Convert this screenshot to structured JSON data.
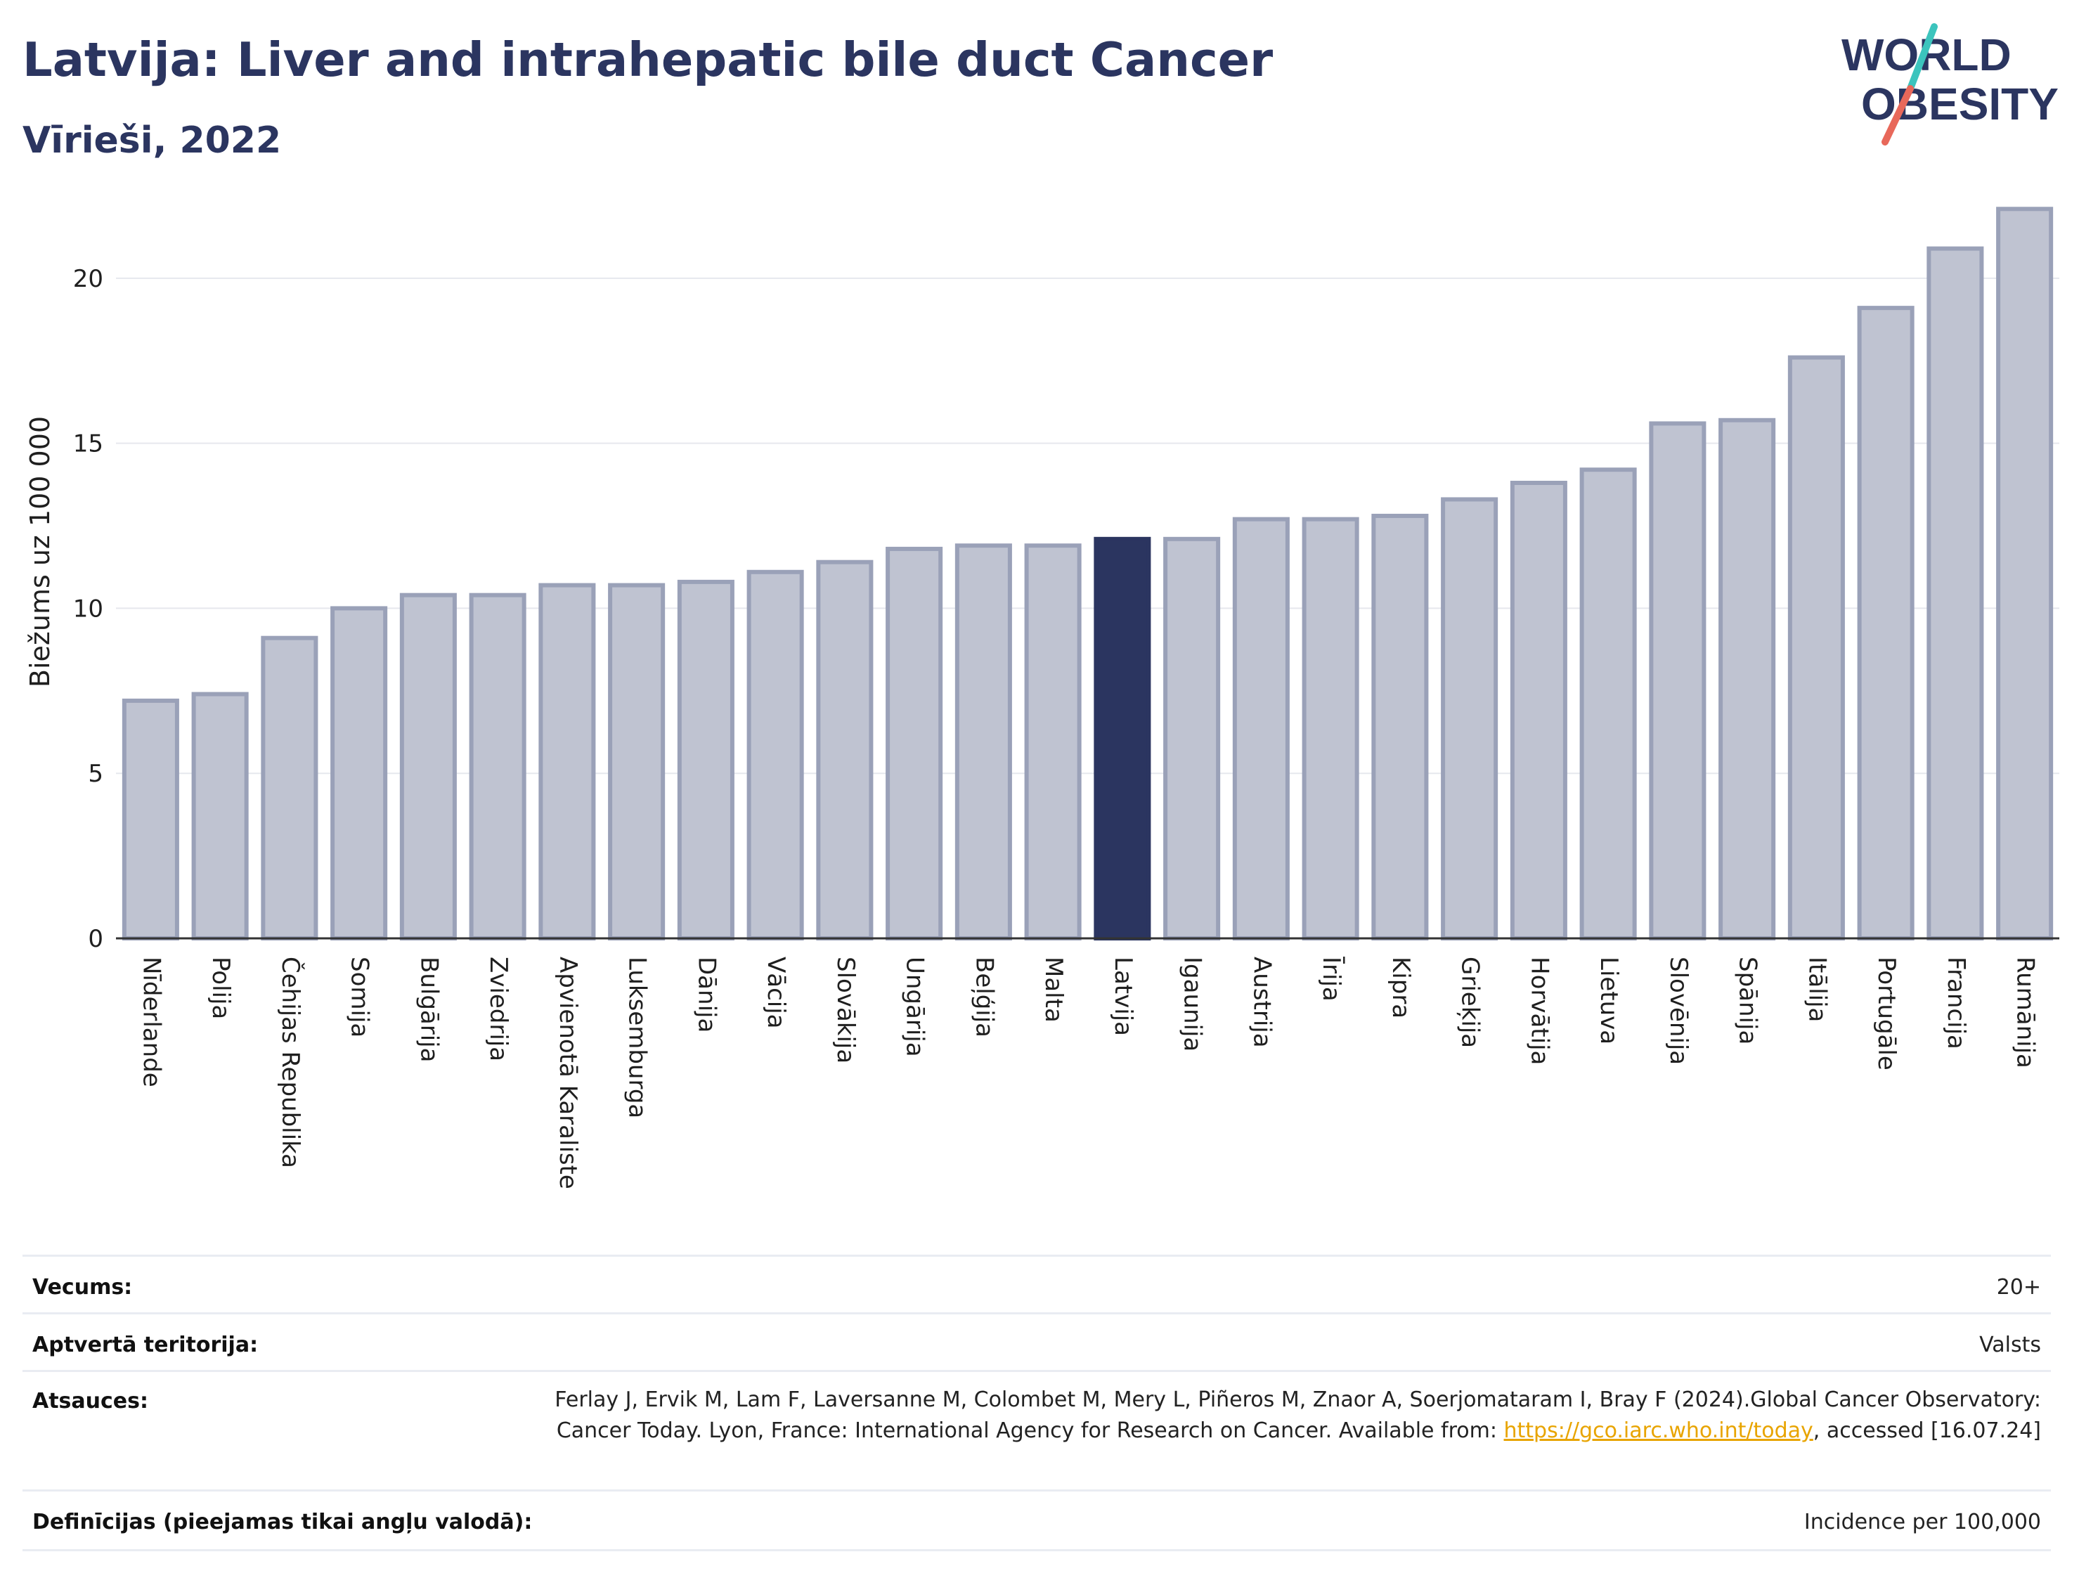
{
  "header": {
    "title": "Latvija: Liver and intrahepatic bile duct Cancer",
    "subtitle": "Vīrieši, 2022"
  },
  "logo": {
    "line1": "WORLD",
    "line2": "OBESITY",
    "colors": {
      "text": "#2b3560",
      "slash_top": "#3cc4bd",
      "slash_bottom": "#e8685a"
    }
  },
  "chart_data": {
    "type": "bar",
    "title": "",
    "xlabel": "",
    "ylabel": "Biežums uz 100 000",
    "ylim": [
      0,
      23
    ],
    "yticks": [
      0,
      5,
      10,
      15,
      20
    ],
    "grid": true,
    "highlight": "Latvija",
    "colors": {
      "bar": "#bfc3d1",
      "bar_border": "#9aa1b8",
      "highlight": "#2b3560"
    },
    "categories": [
      "Nīderlande",
      "Polija",
      "Čehijas Republika",
      "Somija",
      "Bulgārija",
      "Zviedrija",
      "Apvienotā Karaliste",
      "Luksemburga",
      "Dānija",
      "Vācija",
      "Slovākija",
      "Ungārija",
      "Beļģija",
      "Malta",
      "Latvija",
      "Igaunija",
      "Austrija",
      "Īrija",
      "Kipra",
      "Grieķija",
      "Horvātija",
      "Lietuva",
      "Slovēnija",
      "Spānija",
      "Itālija",
      "Portugāle",
      "Francija",
      "Rumānija"
    ],
    "values": [
      7.2,
      7.4,
      9.1,
      10.0,
      10.4,
      10.4,
      10.7,
      10.7,
      10.8,
      11.1,
      11.4,
      11.8,
      11.9,
      11.9,
      12.1,
      12.1,
      12.7,
      12.7,
      12.8,
      13.3,
      13.8,
      14.2,
      15.6,
      15.7,
      17.6,
      19.1,
      20.9,
      22.1
    ]
  },
  "info": {
    "age_label": "Vecums:",
    "age_value": "20+",
    "territory_label": "Aptvertā teritorija:",
    "territory_value": "Valsts",
    "refs_label": "Atsauces:",
    "refs_text_1": "Ferlay J, Ervik M, Lam F, Laversanne M, Colombet M, Mery L, Piñeros M, Znaor A, Soerjomataram I, Bray F (2024).Global Cancer Observatory: Cancer Today. Lyon, France: International Agency for Research on Cancer. Available from: ",
    "refs_link": "https://gco.iarc.who.int/today",
    "refs_text_2": ", accessed [16.07.24]",
    "defs_label": "Definīcijas (pieejamas tikai angļu valodā):",
    "defs_value": "Incidence per 100,000"
  }
}
